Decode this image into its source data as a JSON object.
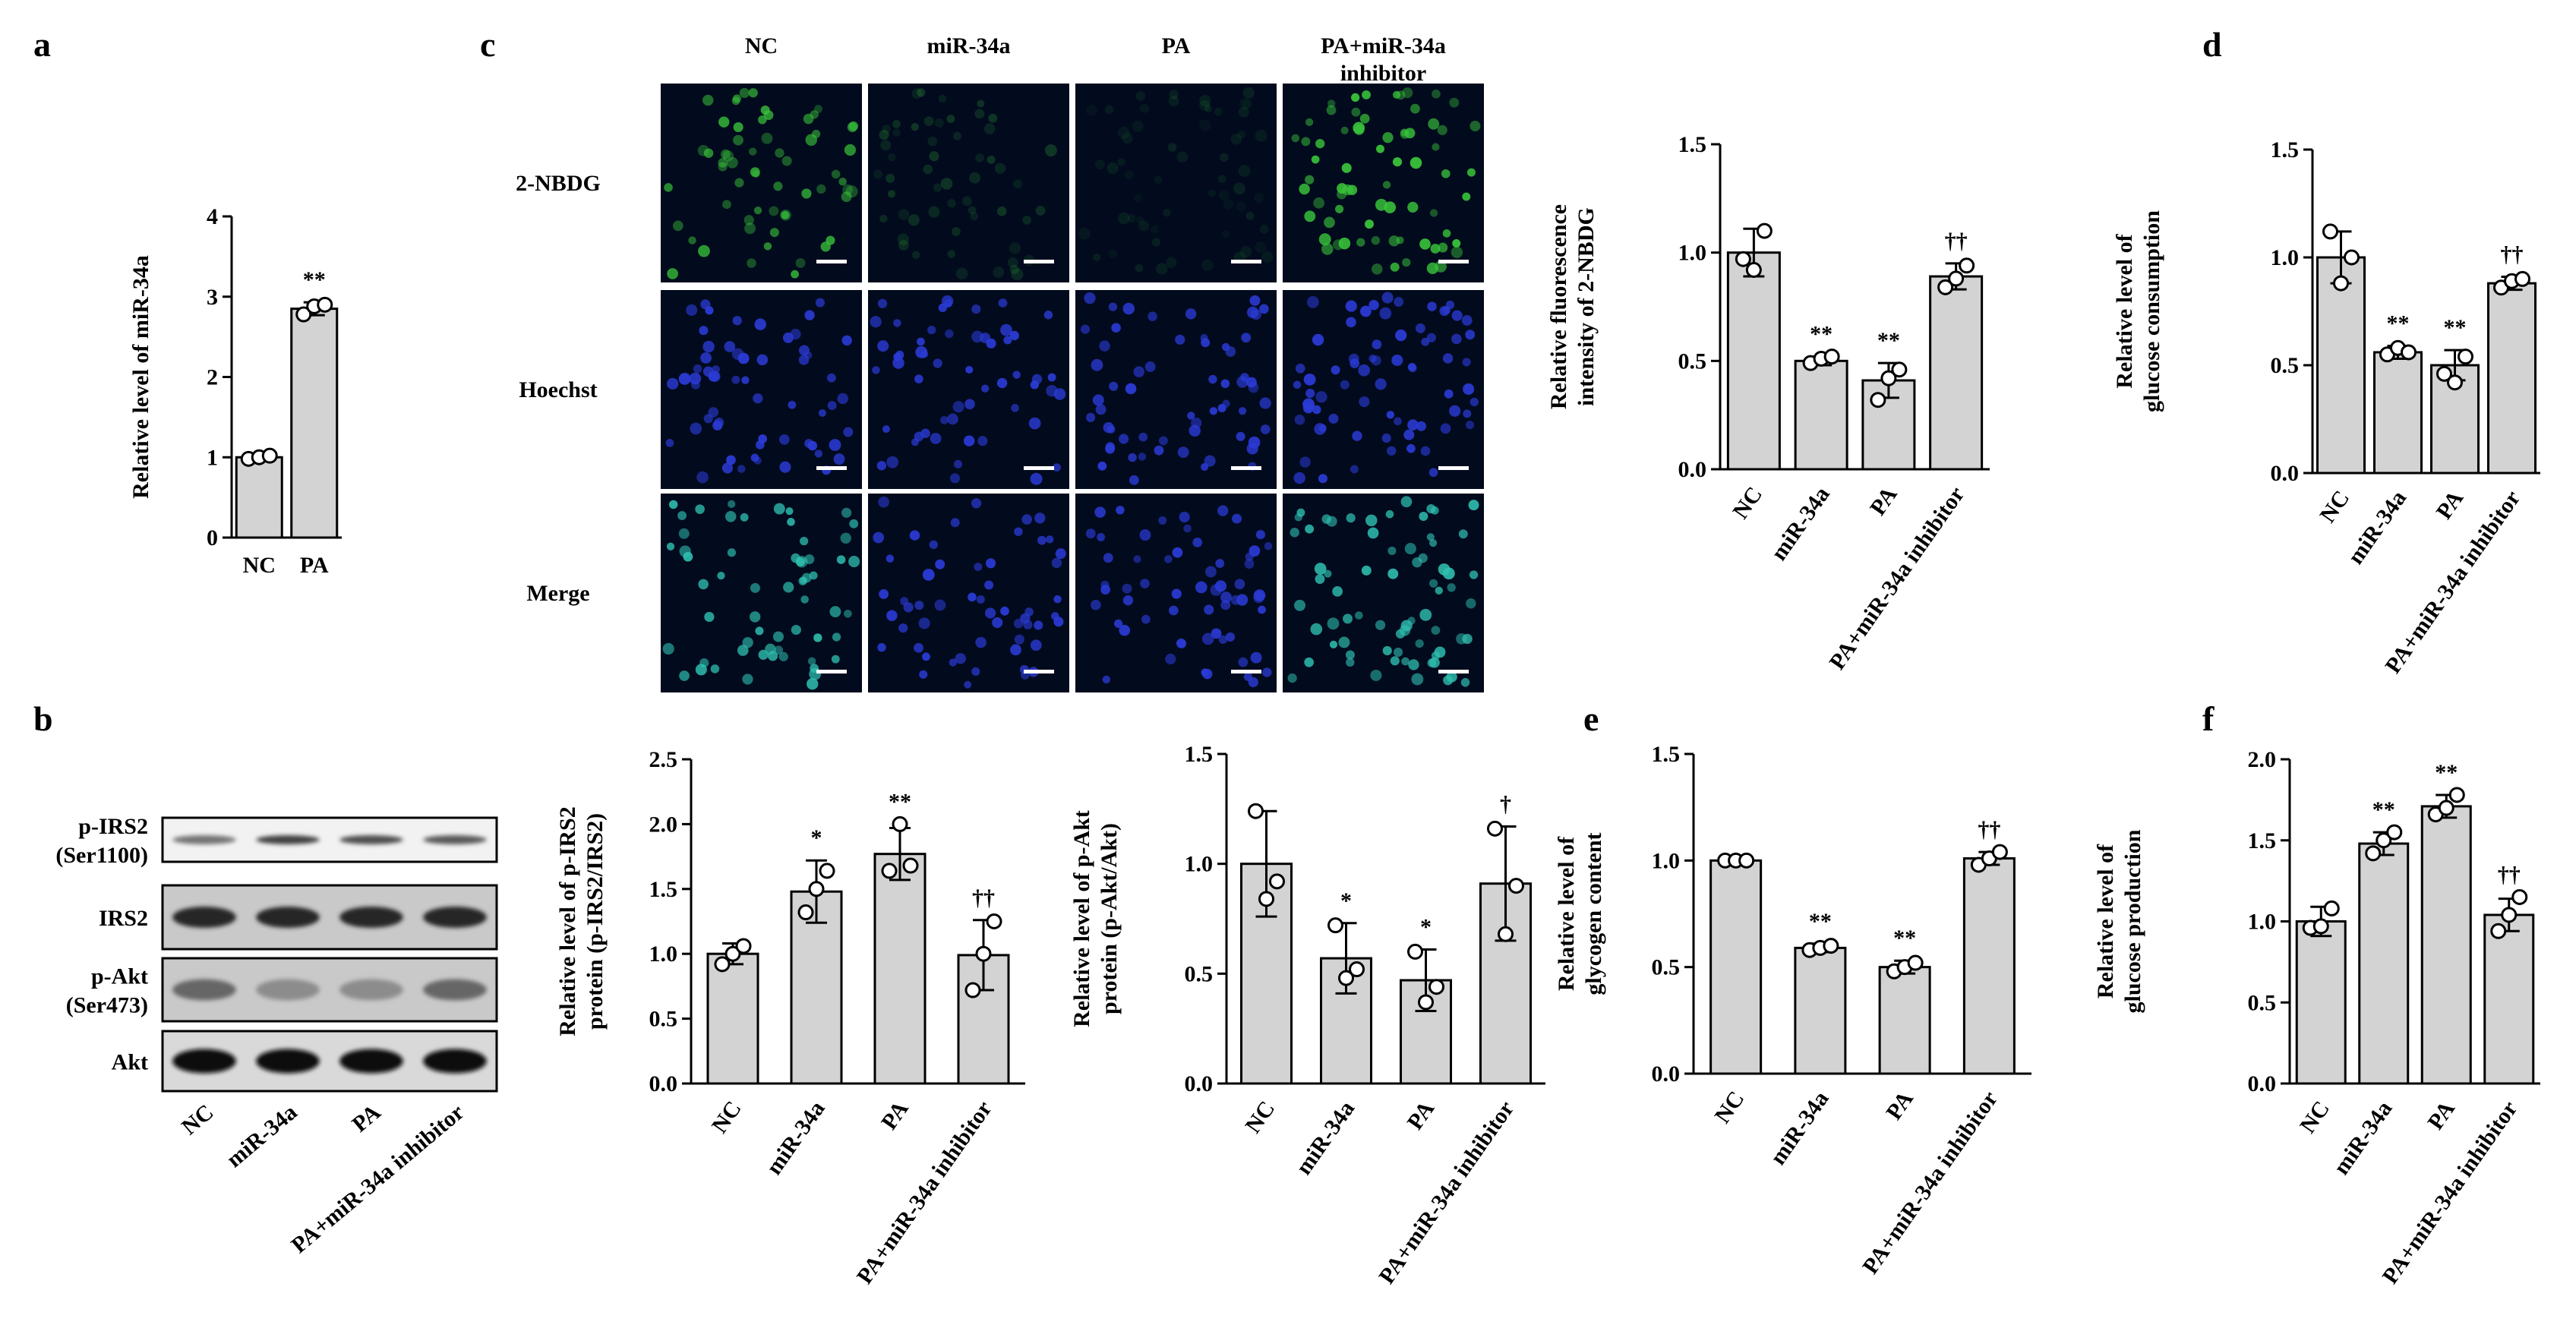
{
  "panels": {
    "a": "a",
    "b": "b",
    "c": "c",
    "d": "d",
    "e": "e",
    "f": "f"
  },
  "western_blot": {
    "rows": [
      "p-IRS2\n(Ser1100)",
      "IRS2",
      "p-Akt\n(Ser473)",
      "Akt"
    ],
    "row_lines": [
      [
        "p-IRS2",
        "(Ser1100)"
      ],
      [
        "IRS2"
      ],
      [
        "p-Akt",
        "(Ser473)"
      ],
      [
        "Akt"
      ]
    ],
    "lanes": [
      "NC",
      "miR-34a",
      "PA",
      "PA+miR-34a inhibitor"
    ],
    "band_intensity": [
      [
        0.55,
        0.75,
        0.7,
        0.65
      ],
      [
        0.85,
        0.85,
        0.85,
        0.85
      ],
      [
        0.6,
        0.45,
        0.45,
        0.6
      ],
      [
        0.95,
        0.95,
        0.95,
        0.95
      ]
    ]
  },
  "microscopy": {
    "columns": [
      "NC",
      "miR-34a",
      "PA",
      "PA+miR-34a\ninhibitor"
    ],
    "column_lines": [
      [
        "NC"
      ],
      [
        "miR-34a"
      ],
      [
        "PA"
      ],
      [
        "PA+miR-34a",
        "inhibitor"
      ]
    ],
    "rows": [
      "2-NBDG",
      "Hoechst",
      "Merge"
    ],
    "channel_colors": {
      "green": "#39c43a",
      "blue": "#2b3bd6",
      "merge": "#2fc0b0",
      "background": "#020a1e"
    }
  },
  "chart_data": [
    {
      "id": "a",
      "type": "bar",
      "categories": [
        "NC",
        "PA"
      ],
      "values": [
        1.0,
        2.85
      ],
      "errors": [
        0.03,
        0.08
      ],
      "points": [
        [
          0.98,
          1.0,
          1.02
        ],
        [
          2.78,
          2.88,
          2.9
        ]
      ],
      "significance": [
        "",
        "**"
      ],
      "ylabel": "Relative level of miR-34a",
      "ylim": [
        0,
        4
      ],
      "yticks": [
        0,
        1,
        2,
        3,
        4
      ]
    },
    {
      "id": "c-right",
      "type": "bar",
      "categories": [
        "NC",
        "miR-34a",
        "PA",
        "PA+miR-34a inhibitor"
      ],
      "values": [
        1.0,
        0.5,
        0.41,
        0.89
      ],
      "errors": [
        0.11,
        0.02,
        0.08,
        0.06
      ],
      "points": [
        [
          0.97,
          0.92,
          1.1
        ],
        [
          0.49,
          0.51,
          0.52
        ],
        [
          0.32,
          0.42,
          0.46
        ],
        [
          0.84,
          0.88,
          0.94
        ]
      ],
      "significance": [
        "",
        "**",
        "**",
        "††"
      ],
      "ylabel": "Relative fluorescence\nintensity of 2-NBDG",
      "ylabel_lines": [
        "Relative fluorescence",
        "intensity of 2-NBDG"
      ],
      "ylim": [
        0,
        1.5
      ],
      "yticks": [
        "0.0",
        "0.5",
        "1.0",
        "1.5"
      ]
    },
    {
      "id": "d",
      "type": "bar",
      "categories": [
        "NC",
        "miR-34a",
        "PA",
        "PA+miR-34a inhibitor"
      ],
      "values": [
        1.0,
        0.56,
        0.5,
        0.88
      ],
      "errors": [
        0.12,
        0.03,
        0.07,
        0.03
      ],
      "points": [
        [
          1.12,
          0.88,
          1.0
        ],
        [
          0.55,
          0.58,
          0.56
        ],
        [
          0.46,
          0.42,
          0.54
        ],
        [
          0.86,
          0.89,
          0.9
        ]
      ],
      "significance": [
        "",
        "**",
        "**",
        "††"
      ],
      "ylabel": "Relative level of\nglucose consumption",
      "ylabel_lines": [
        "Relative level of",
        "glucose consumption"
      ],
      "ylim": [
        0,
        1.5
      ],
      "yticks": [
        "0.0",
        "0.5",
        "1.0",
        "1.5"
      ]
    },
    {
      "id": "b-irs2",
      "type": "bar",
      "categories": [
        "NC",
        "miR-34a",
        "PA",
        "PA+miR-34a inhibitor"
      ],
      "values": [
        1.0,
        1.48,
        1.77,
        0.99
      ],
      "errors": [
        0.08,
        0.24,
        0.2,
        0.27
      ],
      "points": [
        [
          0.92,
          1.0,
          1.06
        ],
        [
          1.32,
          1.5,
          1.64
        ],
        [
          1.64,
          2.0,
          1.68
        ],
        [
          0.72,
          1.0,
          1.25
        ]
      ],
      "significance": [
        "",
        "*",
        "**",
        "††"
      ],
      "ylabel": "Relative level of p-IRS2\nprotein (p-IRS2/IRS2)",
      "ylabel_lines": [
        "Relative level of p-IRS2",
        "protein (p-IRS2/IRS2)"
      ],
      "ylim": [
        0,
        2.5
      ],
      "yticks": [
        "0.0",
        "0.5",
        "1.0",
        "1.5",
        "2.0",
        "2.5"
      ]
    },
    {
      "id": "b-akt",
      "type": "bar",
      "categories": [
        "NC",
        "miR-34a",
        "PA",
        "PA+miR-34a inhibitor"
      ],
      "values": [
        1.0,
        0.57,
        0.47,
        0.91
      ],
      "errors": [
        0.24,
        0.16,
        0.14,
        0.26
      ],
      "points": [
        [
          1.24,
          0.84,
          0.92
        ],
        [
          0.72,
          0.48,
          0.52
        ],
        [
          0.6,
          0.37,
          0.44
        ],
        [
          1.16,
          0.68,
          0.9
        ]
      ],
      "significance": [
        "",
        "*",
        "*",
        "†"
      ],
      "ylabel": "Relative level of p-Akt\nprotein (p-Akt/Akt)",
      "ylabel_lines": [
        "Relative level of p-Akt",
        "protein (p-Akt/Akt)"
      ],
      "ylim": [
        0,
        1.5
      ],
      "yticks": [
        "0.0",
        "0.5",
        "1.0",
        "1.5"
      ]
    },
    {
      "id": "e",
      "type": "bar",
      "categories": [
        "NC",
        "miR-34a",
        "PA",
        "PA+miR-34a inhibitor"
      ],
      "values": [
        1.0,
        0.59,
        0.5,
        1.01
      ],
      "errors": [
        0.01,
        0.02,
        0.03,
        0.03
      ],
      "points": [
        [
          1.0,
          1.0,
          1.0
        ],
        [
          0.58,
          0.59,
          0.6
        ],
        [
          0.48,
          0.5,
          0.52
        ],
        [
          0.98,
          1.01,
          1.04
        ]
      ],
      "significance": [
        "",
        "**",
        "**",
        "††"
      ],
      "ylabel": "Relative level of\nglycogen content",
      "ylabel_lines": [
        "Relative level of",
        "glycogen content"
      ],
      "ylim": [
        0,
        1.5
      ],
      "yticks": [
        "0.0",
        "0.5",
        "1.0",
        "1.5"
      ]
    },
    {
      "id": "f",
      "type": "bar",
      "categories": [
        "NC",
        "miR-34a",
        "PA",
        "PA+miR-34a inhibitor"
      ],
      "values": [
        1.0,
        1.48,
        1.71,
        1.04
      ],
      "errors": [
        0.09,
        0.07,
        0.07,
        0.1
      ],
      "points": [
        [
          0.96,
          0.97,
          1.08
        ],
        [
          1.42,
          1.5,
          1.55
        ],
        [
          1.66,
          1.7,
          1.78
        ],
        [
          0.94,
          1.04,
          1.15
        ]
      ],
      "significance": [
        "",
        "**",
        "**",
        "††"
      ],
      "ylabel": "Relative level of\nglucose production",
      "ylabel_lines": [
        "Relative level of",
        "glucose production"
      ],
      "ylim": [
        0,
        2.0
      ],
      "yticks": [
        "0.0",
        "0.5",
        "1.0",
        "1.5",
        "2.0"
      ]
    }
  ]
}
